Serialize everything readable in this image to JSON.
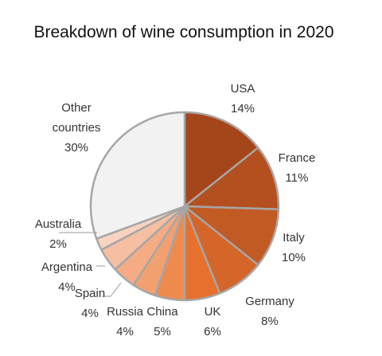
{
  "chart_data": {
    "type": "pie",
    "title": "Breakdown of wine consumption in 2020",
    "slices": [
      {
        "name": "USA",
        "label_lines": [
          "USA"
        ],
        "value": 14,
        "value_label": "14%",
        "color": "#a5451a"
      },
      {
        "name": "France",
        "label_lines": [
          "France"
        ],
        "value": 11,
        "value_label": "11%",
        "color": "#b4501f"
      },
      {
        "name": "Italy",
        "label_lines": [
          "Italy"
        ],
        "value": 10,
        "value_label": "10%",
        "color": "#c25a24"
      },
      {
        "name": "Germany",
        "label_lines": [
          "Germany"
        ],
        "value": 8,
        "value_label": "8%",
        "color": "#d4662a"
      },
      {
        "name": "UK",
        "label_lines": [
          "UK"
        ],
        "value": 6,
        "value_label": "6%",
        "color": "#e6712e"
      },
      {
        "name": "China",
        "label_lines": [
          "China"
        ],
        "value": 5,
        "value_label": "5%",
        "color": "#ef8a4f"
      },
      {
        "name": "Russia",
        "label_lines": [
          "Russia"
        ],
        "value": 4,
        "value_label": "4%",
        "color": "#f3a071"
      },
      {
        "name": "Spain",
        "label_lines": [
          "Spain"
        ],
        "value": 4,
        "value_label": "4%",
        "color": "#f5ac85"
      },
      {
        "name": "Argentina",
        "label_lines": [
          "Argentina"
        ],
        "value": 4,
        "value_label": "4%",
        "color": "#f7bfa2"
      },
      {
        "name": "Australia",
        "label_lines": [
          "Australia"
        ],
        "value": 2,
        "value_label": "2%",
        "color": "#f9d3bf"
      },
      {
        "name": "Other countries",
        "label_lines": [
          "Other",
          "countries"
        ],
        "value": 30,
        "value_label": "30%",
        "color": "#f2f2f2"
      }
    ],
    "start_angle_deg": 0,
    "direction": "clockwise",
    "slice_border_color": "#a6a6a6",
    "leader_line_color": "#9a9a9a",
    "legend": "none"
  }
}
